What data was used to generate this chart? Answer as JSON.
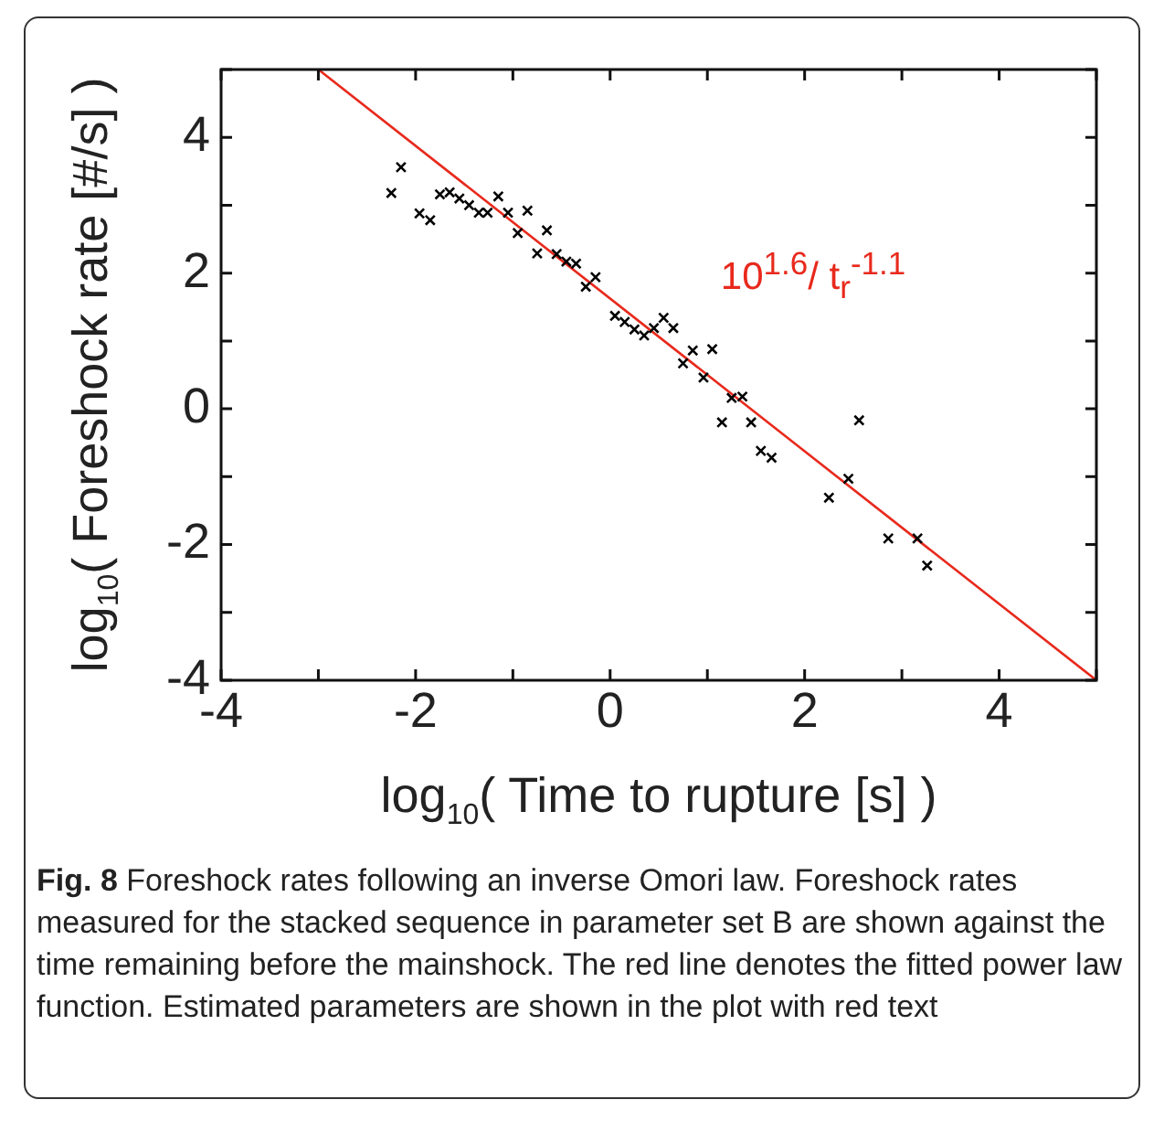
{
  "chart_data": {
    "type": "scatter",
    "xlabel": "log$_{10}$( Time to rupture [s] )",
    "ylabel": "log$_{10}$( Foreshock rate [#/s] )",
    "xlim": [
      -4,
      5
    ],
    "ylim": [
      -4,
      5
    ],
    "xticks": [
      -4,
      {
        "value": -3,
        "label": null
      },
      -2,
      {
        "value": -1,
        "label": null
      },
      0,
      {
        "value": 1,
        "label": null
      },
      2,
      {
        "value": 3,
        "label": null
      },
      4,
      {
        "value": 5,
        "label": null
      }
    ],
    "yticks": [
      -4,
      {
        "value": -3,
        "label": null
      },
      -2,
      {
        "value": -1,
        "label": null
      },
      0,
      {
        "value": 1,
        "label": null
      },
      2,
      {
        "value": 3,
        "label": null
      },
      4,
      {
        "value": 5,
        "label": null
      }
    ],
    "grid": false,
    "legend": false,
    "series": [
      {
        "color": "#000000",
        "marker": "cross",
        "x": [
          -2.25,
          -2.15,
          -1.96,
          -1.85,
          -1.75,
          -1.65,
          -1.55,
          -1.45,
          -1.35,
          -1.26,
          -1.15,
          -1.05,
          -0.95,
          -0.85,
          -0.75,
          -0.65,
          -0.55,
          -0.45,
          -0.35,
          -0.25,
          -0.15,
          0.05,
          0.15,
          0.25,
          0.35,
          0.45,
          0.55,
          0.65,
          0.75,
          0.85,
          0.96,
          1.05,
          1.15,
          1.25,
          1.36,
          1.45,
          1.55,
          1.66,
          2.25,
          2.45,
          2.56,
          2.86,
          3.16,
          3.26
        ],
        "values": [
          3.18,
          3.56,
          2.88,
          2.78,
          3.16,
          3.19,
          3.1,
          3.0,
          2.89,
          2.89,
          3.13,
          2.89,
          2.59,
          2.92,
          2.29,
          2.63,
          2.28,
          2.17,
          2.14,
          1.8,
          1.94,
          1.37,
          1.28,
          1.17,
          1.08,
          1.19,
          1.34,
          1.19,
          0.67,
          0.86,
          0.46,
          0.88,
          -0.2,
          0.16,
          0.18,
          -0.2,
          -0.62,
          -0.72,
          -1.31,
          -1.03,
          -0.17,
          -1.91,
          -1.91,
          -2.31
        ]
      },
      {
        "type": "line",
        "color": "#e8291c",
        "marker": "none",
        "line_style": "solid",
        "x": [
          -3,
          5
        ],
        "values": [
          5,
          -4
        ]
      }
    ],
    "annotations": [
      "10$^{1.6}$/ t$_{r}$$^{-1.1}$",
      "**Fig. 8** Foreshock rates following an inverse Omori law. Foreshock rates measured for the stacked sequence in parameter set B are shown against the time remaining before the mainshock. The red line denotes the fitted power law function. Estimated parameters are shown in the plot with red text"
    ]
  }
}
